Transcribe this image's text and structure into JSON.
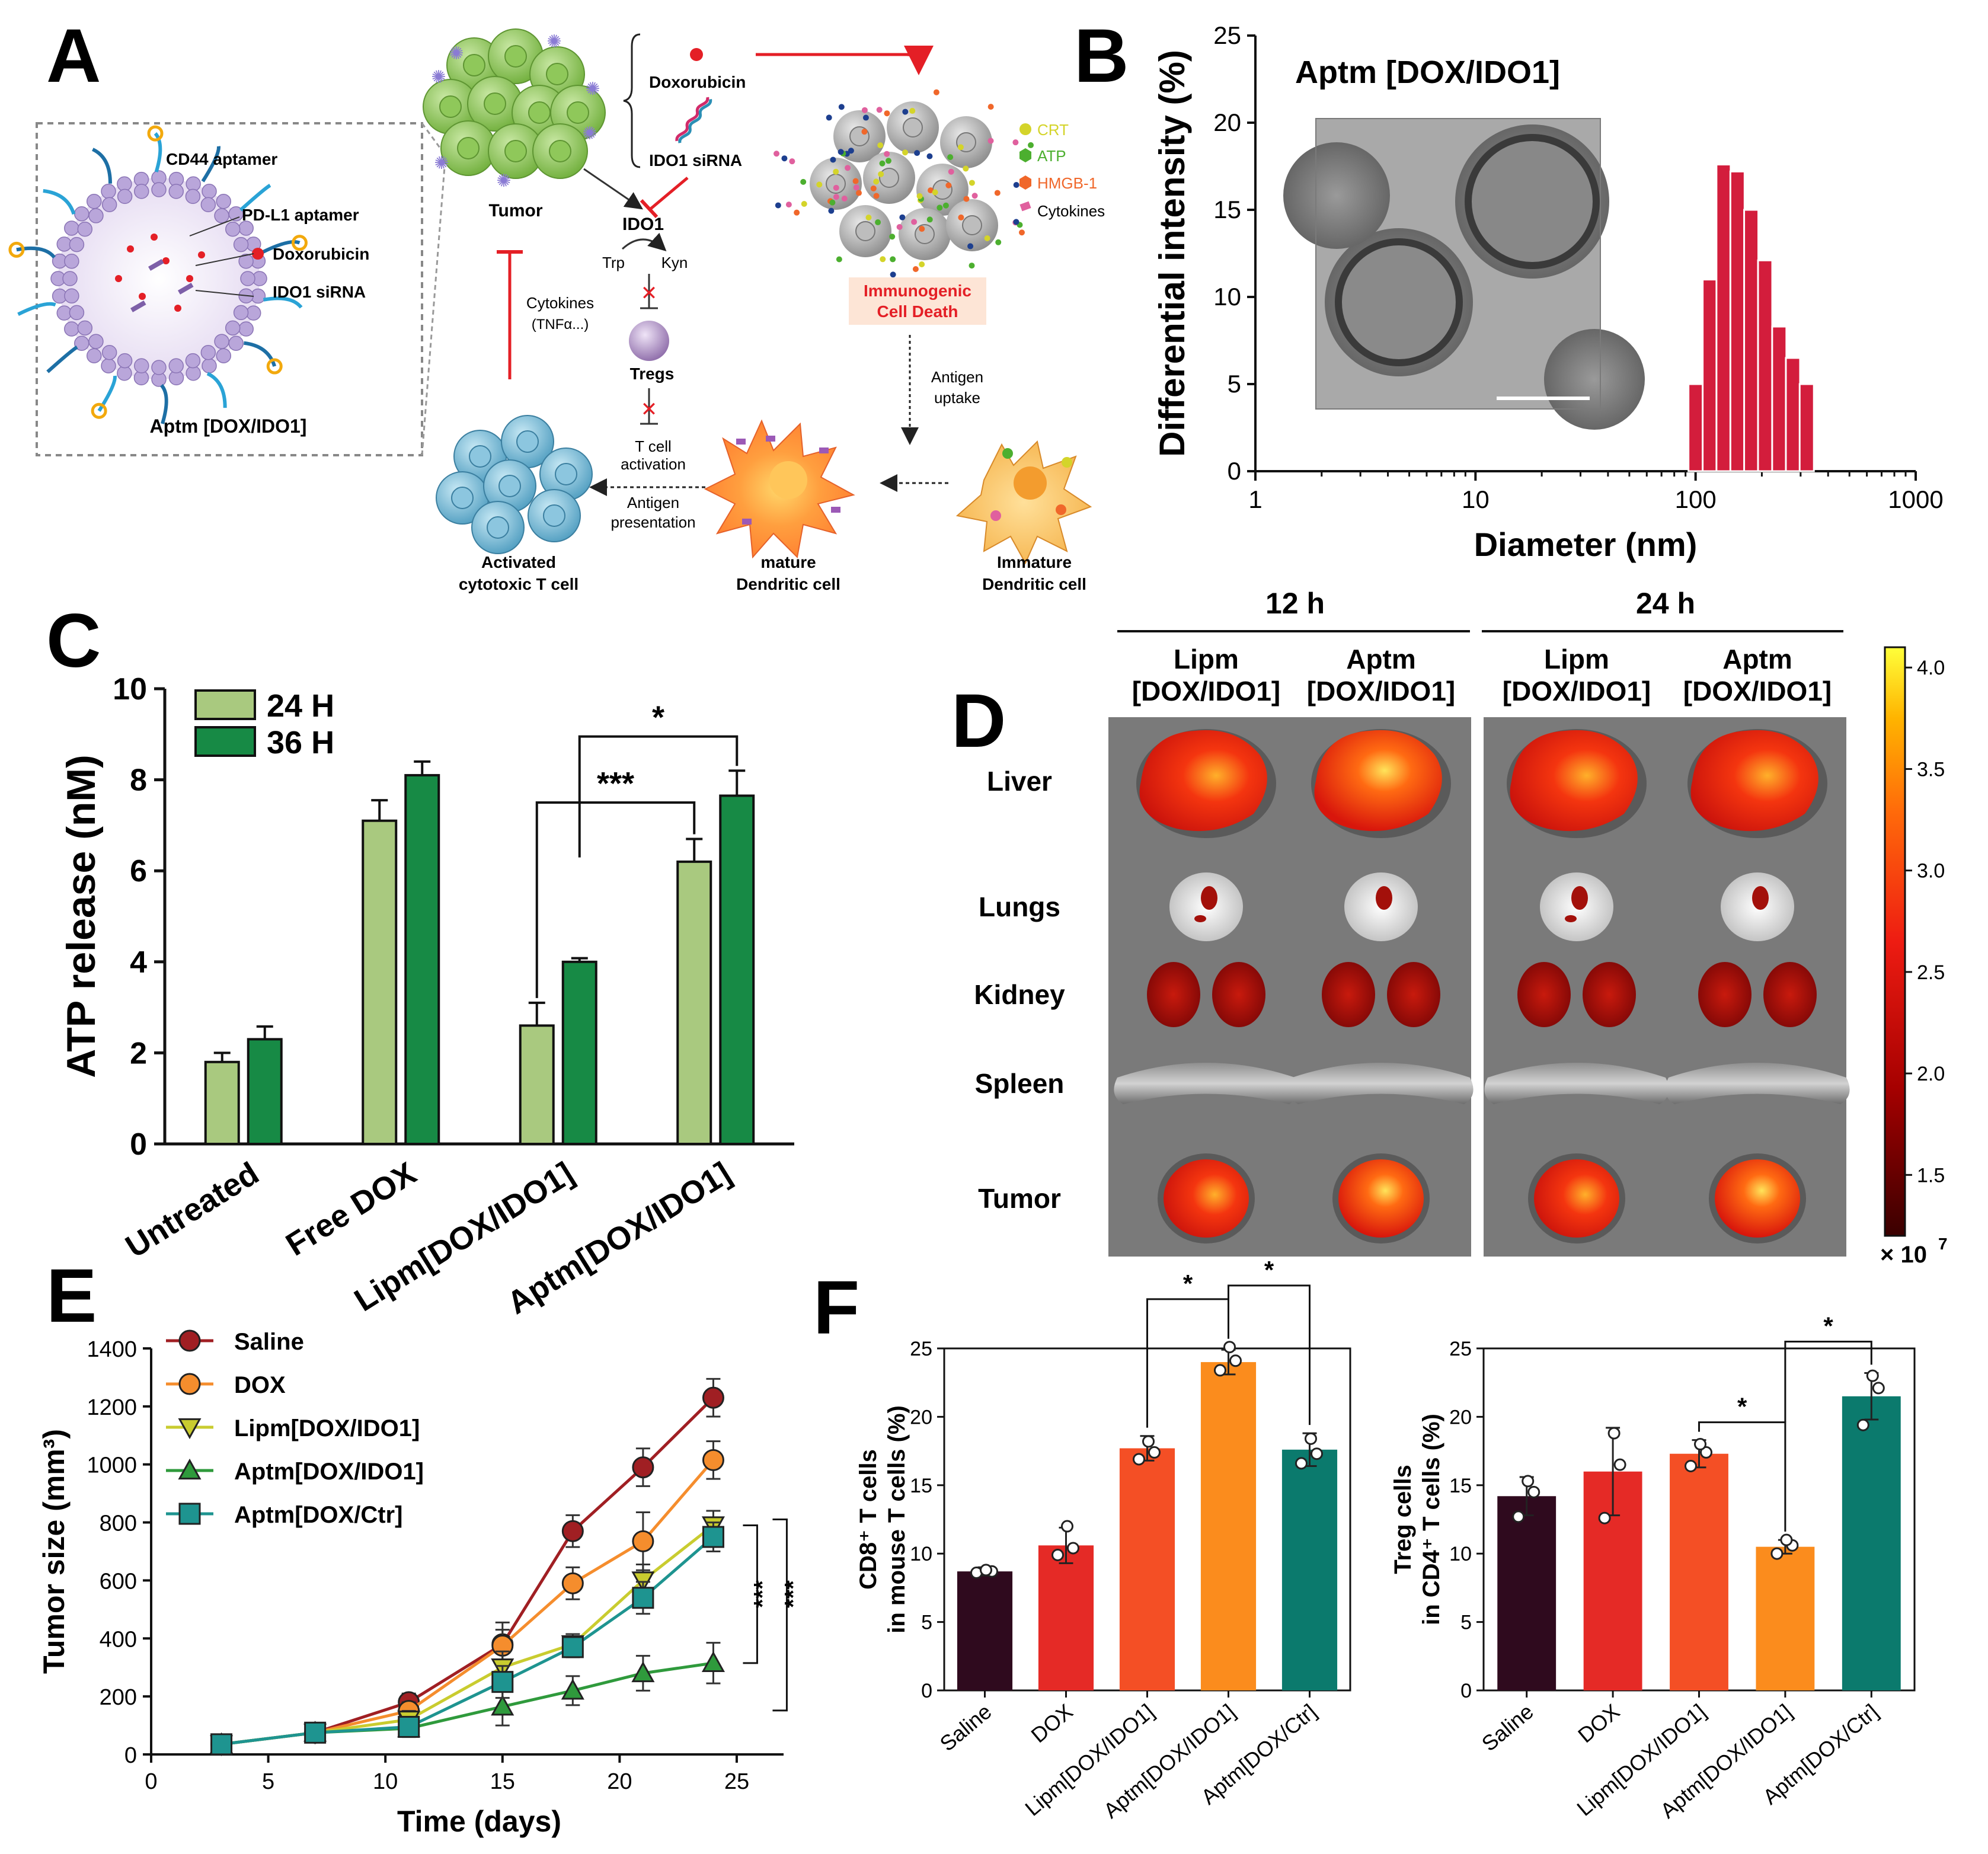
{
  "panels": {
    "A": {
      "letter": "A",
      "liposome_labels": [
        "CD44 aptamer",
        "PD-L1 aptamer",
        "Doxorubicin",
        "IDO1 siRNA"
      ],
      "liposome_name": "Aptm [DOX/IDO1]",
      "tumor": "Tumor",
      "drugs": [
        "Doxorubicin",
        "IDO1 siRNA"
      ],
      "ido1": "IDO1",
      "trp": "Trp",
      "kyn": "Kyn",
      "tregs": "Tregs",
      "tcell_activation": [
        "T cell",
        "activation"
      ],
      "cytokines": [
        "Cytokines",
        "(TNFα...)"
      ],
      "icd_legend": [
        {
          "label": "CRT",
          "color": "#d4d42a"
        },
        {
          "label": "ATP",
          "color": "#4caf2f"
        },
        {
          "label": "HMGB-1",
          "color": "#f0672a"
        },
        {
          "label": "Cytokines",
          "color": "#e0609e"
        }
      ],
      "icd": [
        "Immunogenic",
        "Cell Death"
      ],
      "antigen_uptake": [
        "Antigen",
        "uptake"
      ],
      "antigen_presentation": [
        "Antigen",
        "presentation"
      ],
      "ctl": [
        "Activated",
        "cytotoxic T cell"
      ],
      "mature_dc": [
        "mature",
        "Dendritic cell"
      ],
      "immature_dc": [
        "Immature",
        "Dendritic cell"
      ]
    },
    "B": {
      "letter": "B",
      "inset_title": "Aptm [DOX/IDO1]",
      "chart_data": {
        "type": "bar",
        "title": "Aptm [DOX/IDO1]",
        "xlabel": "Diameter (nm)",
        "ylabel": "Differential intensity (%)",
        "xscale": "log",
        "xlim": [
          1,
          1000
        ],
        "ylim": [
          0,
          25
        ],
        "x_ticks": [
          "1",
          "10",
          "100",
          "1000"
        ],
        "y_ticks": [
          "0",
          "5",
          "10",
          "15",
          "20",
          "25"
        ],
        "x": [
          100,
          116,
          134,
          155,
          179,
          207,
          240,
          277,
          320
        ],
        "values": [
          5,
          11,
          17.6,
          17.2,
          15,
          12.1,
          8.3,
          6.5,
          5
        ]
      }
    },
    "C": {
      "letter": "C",
      "chart_data": {
        "type": "bar",
        "ylabel": "ATP release (nM)",
        "ylim": [
          0,
          10
        ],
        "y_ticks": [
          "0",
          "2",
          "4",
          "6",
          "8",
          "10"
        ],
        "categories": [
          "Untreated",
          "Free DOX",
          "Lipm[DOX/IDO1]",
          "Aptm[DOX/IDO1]"
        ],
        "series": [
          {
            "name": "24 H",
            "color": "#a9c97f",
            "values": [
              1.8,
              7.1,
              2.6,
              6.2
            ],
            "errors": [
              0.2,
              0.45,
              0.5,
              0.5
            ]
          },
          {
            "name": "36 H",
            "color": "#178a45",
            "values": [
              2.3,
              8.1,
              4.0,
              7.65
            ],
            "errors": [
              0.28,
              0.3,
              0.08,
              0.55
            ]
          }
        ],
        "significance": [
          {
            "label": "***",
            "from": "Lipm[DOX/IDO1] 24 H",
            "to": "Aptm[DOX/IDO1] 24 H"
          },
          {
            "label": "*",
            "from": "Lipm[DOX/IDO1] 36 H",
            "to": "Aptm[DOX/IDO1] 36 H"
          }
        ]
      }
    },
    "D": {
      "letter": "D",
      "times": [
        "12 h",
        "24 h"
      ],
      "columns": [
        "Lipm",
        "[DOX/IDO1]",
        "Aptm",
        "[DOX/IDO1]",
        "Lipm",
        "[DOX/IDO1]",
        "Aptm",
        "[DOX/IDO1]"
      ],
      "organs": [
        "Liver",
        "Lungs",
        "Kidney",
        "Spleen",
        "Tumor"
      ],
      "scale_ticks": [
        "4.0",
        "3.5",
        "3.0",
        "2.5",
        "2.0",
        "1.5"
      ],
      "scale_unit": "× 10",
      "scale_exp": "7"
    },
    "E": {
      "letter": "E",
      "chart_data": {
        "type": "line",
        "xlabel": "Time (days)",
        "ylabel": "Tumor size (mm³)",
        "xlim": [
          0,
          27
        ],
        "ylim": [
          0,
          1400
        ],
        "x_ticks": [
          "0",
          "5",
          "10",
          "15",
          "20",
          "25"
        ],
        "y_ticks": [
          "0",
          "200",
          "400",
          "600",
          "800",
          "1000",
          "1200",
          "1400"
        ],
        "x": [
          3,
          7,
          11,
          15,
          18,
          21,
          24
        ],
        "series": [
          {
            "name": "Saline",
            "color": "#a01f23",
            "marker": "circle",
            "values": [
              35,
              75,
              180,
              380,
              770,
              990,
              1230
            ],
            "errors": [
              30,
              30,
              30,
              75,
              55,
              65,
              65
            ]
          },
          {
            "name": "DOX",
            "color": "#f58d2d",
            "marker": "circle",
            "values": [
              35,
              75,
              150,
              375,
              590,
              735,
              1015
            ],
            "errors": [
              30,
              30,
              30,
              55,
              55,
              100,
              65
            ]
          },
          {
            "name": "Lipm[DOX/IDO1]",
            "color": "#c9cc2f",
            "marker": "triangle-down",
            "values": [
              35,
              75,
              120,
              300,
              380,
              600,
              790
            ],
            "errors": [
              30,
              30,
              30,
              55,
              35,
              55,
              50
            ]
          },
          {
            "name": "Aptm[DOX/IDO1]",
            "color": "#2f9a3c",
            "marker": "triangle-up",
            "values": [
              35,
              75,
              90,
              165,
              220,
              280,
              315
            ],
            "errors": [
              30,
              30,
              30,
              65,
              50,
              60,
              70
            ]
          },
          {
            "name": "Aptm[DOX/Ctr]",
            "color": "#1e9490",
            "marker": "square",
            "values": [
              35,
              75,
              95,
              250,
              370,
              540,
              750
            ],
            "errors": [
              30,
              30,
              30,
              55,
              35,
              55,
              50
            ]
          }
        ],
        "significance": [
          "***",
          "***"
        ]
      }
    },
    "F": {
      "letter": "F",
      "chart_data": [
        {
          "type": "bar",
          "ylabel_lines": [
            "CD8⁺ T cells",
            "in mouse T cells (%)"
          ],
          "ylim": [
            0,
            25
          ],
          "y_ticks": [
            "0",
            "5",
            "10",
            "15",
            "20",
            "25"
          ],
          "categories": [
            "Saline",
            "DOX",
            "Lipm[DOX/IDO1]",
            "Aptm[DOX/IDO1]",
            "Aptm[DOX/Ctr]"
          ],
          "colors": [
            "#2f0a1e",
            "#e52a26",
            "#f44f25",
            "#fb8c1d",
            "#0b7a6d"
          ],
          "values": [
            8.7,
            10.6,
            17.7,
            24.0,
            17.6
          ],
          "errors": [
            0.3,
            1.3,
            0.9,
            0.9,
            1.2
          ],
          "points": [
            [
              8.6,
              8.7,
              8.8
            ],
            [
              9.9,
              10.4,
              12.0
            ],
            [
              16.9,
              17.4,
              18.2
            ],
            [
              23.4,
              24.1,
              25.1
            ],
            [
              16.6,
              17.3,
              18.4
            ]
          ],
          "significance": [
            {
              "label": "*",
              "from": "Lipm[DOX/IDO1]",
              "to": "Aptm[DOX/IDO1]"
            },
            {
              "label": "*",
              "from": "Aptm[DOX/IDO1]",
              "to": "Aptm[DOX/Ctr]"
            }
          ]
        },
        {
          "type": "bar",
          "ylabel_lines": [
            "Treg cells",
            "in CD4⁺ T cells (%)"
          ],
          "ylim": [
            0,
            25
          ],
          "y_ticks": [
            "0",
            "5",
            "10",
            "15",
            "20",
            "25"
          ],
          "categories": [
            "Saline",
            "DOX",
            "Lipm[DOX/IDO1]",
            "Aptm[DOX/IDO1]",
            "Aptm[DOX/Ctr]"
          ],
          "colors": [
            "#2f0a1e",
            "#e52a26",
            "#f44f25",
            "#fb8c1d",
            "#0b7a6d"
          ],
          "values": [
            14.2,
            16.0,
            17.3,
            10.5,
            21.5
          ],
          "errors": [
            1.4,
            3.2,
            1.0,
            0.5,
            1.7
          ],
          "points": [
            [
              12.7,
              14.5,
              15.3
            ],
            [
              12.6,
              16.5,
              18.8
            ],
            [
              16.4,
              17.4,
              18.0
            ],
            [
              10.0,
              10.6,
              11.0
            ],
            [
              19.4,
              22.1,
              23.0
            ]
          ],
          "significance": [
            {
              "label": "*",
              "from": "Lipm[DOX/IDO1]",
              "to": "Aptm[DOX/IDO1]"
            },
            {
              "label": "*",
              "from": "Aptm[DOX/IDO1]",
              "to": "Aptm[DOX/Ctr]"
            }
          ]
        }
      ]
    }
  }
}
